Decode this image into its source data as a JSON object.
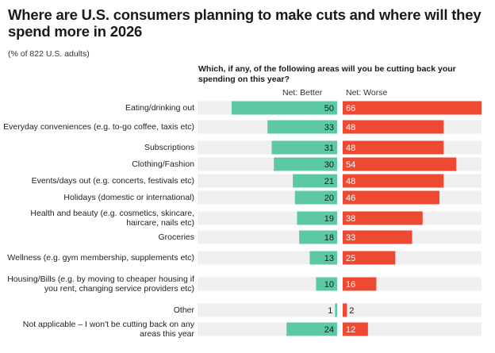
{
  "title": "Where are U.S. consumers planning to make cuts and where will they spend more in 2026",
  "subtitle": "(% of 822 U.S. adults)",
  "question": "Which, if any, of the following areas will you be cutting back your spending on this year?",
  "colors": {
    "better": "#5cc8a6",
    "worse": "#ee4a33",
    "track": "#efefef"
  },
  "chart_data": {
    "type": "bar",
    "title": "Where are U.S. consumers planning to make cuts and where will they spend more in 2026",
    "subtitle": "(% of 822 U.S. adults)",
    "categories": [
      "Eating/drinking out",
      "Everyday conveniences (e.g. to-go coffee, taxis etc)",
      "Subscriptions",
      "Clothing/Fashion",
      "Events/days out (e.g. concerts, festivals etc)",
      "Holidays (domestic or international)",
      "Health and beauty (e.g. cosmetics, skincare, haircare, nails etc)",
      "Groceries",
      "Wellness (e.g. gym membership, supplements etc)",
      "Housing/Bills (e.g. by moving to cheaper housing if you rent, changing service providers etc)",
      "Other",
      "Not applicable – I won't be cutting back on any areas this year"
    ],
    "series": [
      {
        "name": "Net: Better",
        "values": [
          50,
          33,
          31,
          30,
          21,
          20,
          19,
          18,
          13,
          10,
          1,
          24
        ]
      },
      {
        "name": "Net: Worse",
        "values": [
          66,
          48,
          48,
          54,
          48,
          46,
          38,
          33,
          25,
          16,
          2,
          12
        ]
      }
    ],
    "xlim": [
      0,
      66
    ]
  }
}
